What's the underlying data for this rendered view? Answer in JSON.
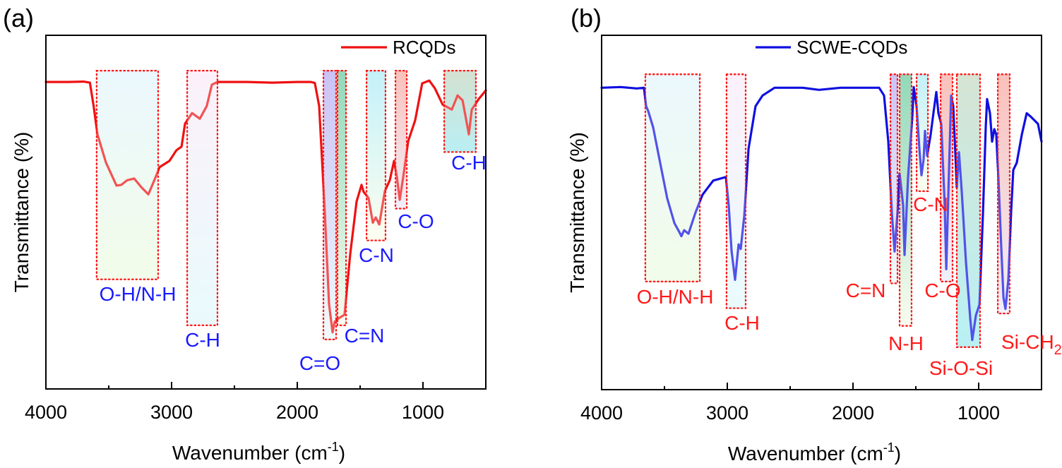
{
  "chart_data": [
    {
      "panel": "(a)",
      "type": "line",
      "title": "",
      "xlabel": "Wavenumber (cm",
      "xlabel_sup": "-1",
      "xlabel_close": ")",
      "ylabel": "Transmittance (%)",
      "xlim": [
        4000,
        500
      ],
      "x_reversed": true,
      "ylim": [
        0,
        100
      ],
      "y_ticks_shown": false,
      "x_ticks": [
        4000,
        3000,
        2000,
        1000
      ],
      "x_tick_labels": [
        "4000",
        "3000",
        "2000",
        "1000"
      ],
      "x_minor_ticks": [
        3500,
        2500,
        1500
      ],
      "grid": false,
      "legend": {
        "placement": "top-right",
        "entries": [
          {
            "name": "RCQDs",
            "color": "#ee1111"
          }
        ]
      },
      "label_color": "#1a1aff",
      "series": [
        {
          "name": "RCQDs",
          "color": "#ee1111",
          "x": [
            4000,
            3820,
            3700,
            3650,
            3620,
            3590,
            3522,
            3438,
            3400,
            3354,
            3298,
            3240,
            3185,
            3129,
            3096,
            3017,
            2961,
            2921,
            2893,
            2837,
            2775,
            2720,
            2680,
            2635,
            2400,
            2200,
            2000,
            1893,
            1860,
            1826,
            1781,
            1747,
            1719,
            1702,
            1669,
            1624,
            1579,
            1528,
            1489,
            1472,
            1433,
            1399,
            1376,
            1348,
            1303,
            1264,
            1230,
            1208,
            1185,
            1157,
            1118,
            1062,
            1006,
            950,
            905,
            843,
            770,
            725,
            685,
            635,
            612,
            556,
            500
          ],
          "y": [
            86.8,
            86.8,
            86.9,
            86.6,
            80,
            72,
            64,
            57.5,
            57.7,
            59,
            59.5,
            57,
            55,
            59.7,
            62.7,
            64.5,
            67.5,
            68.5,
            75,
            78,
            76.4,
            80,
            86,
            86.8,
            86.8,
            86.6,
            86.8,
            86.8,
            86.5,
            80,
            50,
            24,
            16,
            19,
            20,
            21,
            38,
            53,
            57.7,
            55.7,
            54,
            47,
            48.5,
            46.5,
            56,
            59,
            64.5,
            60,
            53.5,
            60,
            70,
            76,
            86.4,
            87.2,
            85,
            80.4,
            79,
            83,
            81.6,
            72,
            79,
            82,
            84.4
          ]
        }
      ],
      "bands": [
        {
          "label": "O-H/N-H",
          "x_range": [
            3596,
            3107
          ],
          "t_range": [
            31,
            90
          ],
          "fill_top": "#dff3fc",
          "fill_bottom": "#eafbdc"
        },
        {
          "label": "C-H",
          "x_range": [
            2876,
            2635
          ],
          "t_range": [
            18,
            90
          ],
          "fill_top": "#fbe8f8",
          "fill_bottom": "#dcf8fb"
        },
        {
          "label": "C=O",
          "x_range": [
            1792,
            1691
          ],
          "t_range": [
            14,
            90
          ],
          "fill_top": "#a99cf0",
          "fill_bottom": "#e7f8f8"
        },
        {
          "label": "C=N",
          "x_range": [
            1680,
            1612
          ],
          "t_range": [
            18,
            90
          ],
          "fill_top": "#4fc08e",
          "fill_bottom": "#f3fbe6"
        },
        {
          "label": "C-N",
          "x_range": [
            1449,
            1298
          ],
          "t_range": [
            42,
            90
          ],
          "fill_top": "#9fe9f6",
          "fill_bottom": "#fdfde6"
        },
        {
          "label": "C-O",
          "x_range": [
            1219,
            1129
          ],
          "t_range": [
            51,
            90
          ],
          "fill_top": "#f79a91",
          "fill_bottom": "#e6e6f8"
        },
        {
          "label": "C-H",
          "x_range": [
            831,
            579
          ],
          "t_range": [
            67,
            90
          ],
          "fill_top": "#b9cfb3",
          "fill_bottom": "#8ee5ec"
        }
      ]
    },
    {
      "panel": "(b)",
      "type": "line",
      "title": "",
      "xlabel": "Wavenumber (cm",
      "xlabel_sup": "-1",
      "xlabel_close": ")",
      "ylabel": "Transmittance (%)",
      "xlim": [
        4000,
        500
      ],
      "x_reversed": true,
      "ylim": [
        0,
        100
      ],
      "y_ticks_shown": false,
      "x_ticks": [
        4000,
        3000,
        2000,
        1000
      ],
      "x_tick_labels": [
        "4000",
        "3000",
        "2000",
        "1000"
      ],
      "x_minor_ticks": [
        3500,
        2500,
        1500
      ],
      "grid": false,
      "legend": {
        "placement": "top-right",
        "entries": [
          {
            "name": "SCWE-CQDs",
            "color": "#1010e0"
          }
        ]
      },
      "label_color": "#ff1a1a",
      "series": [
        {
          "name": "SCWE-CQDs",
          "color": "#1010e0",
          "x": [
            4000,
            3850,
            3720,
            3663,
            3646,
            3629,
            3590,
            3534,
            3478,
            3421,
            3382,
            3365,
            3343,
            3309,
            3253,
            3197,
            3112,
            3011,
            2989,
            2966,
            2938,
            2910,
            2893,
            2865,
            2831,
            2775,
            2719,
            2624,
            2400,
            2270,
            2100,
            1900,
            1792,
            1753,
            1719,
            1691,
            1669,
            1646,
            1629,
            1601,
            1590,
            1562,
            1528,
            1517,
            1494,
            1472,
            1455,
            1438,
            1427,
            1410,
            1382,
            1360,
            1337,
            1320,
            1298,
            1270,
            1258,
            1236,
            1219,
            1202,
            1185,
            1174,
            1157,
            1135,
            1101,
            1067,
            1051,
            1022,
            994,
            966,
            944,
            933,
            910,
            893,
            876,
            860,
            843,
            820,
            803,
            787,
            764,
            742,
            725,
            697,
            657,
            618,
            584,
            528,
            500
          ],
          "y": [
            85.2,
            85.4,
            85.0,
            85.2,
            80,
            78.6,
            74,
            64,
            54,
            47,
            44.5,
            43.3,
            45,
            44,
            50,
            55,
            59,
            60,
            52,
            39,
            31,
            41,
            39.7,
            49,
            68,
            80,
            83,
            85.2,
            85.2,
            84.6,
            85.2,
            85.2,
            85.2,
            83,
            70,
            50,
            39,
            50,
            61,
            52,
            38,
            60,
            77,
            85.4,
            80,
            68,
            60.5,
            65,
            73,
            66,
            72,
            78,
            84,
            78,
            75,
            52,
            34,
            62,
            83,
            80,
            66,
            57,
            67,
            56,
            36,
            20,
            14,
            21,
            24,
            50,
            74,
            82,
            78,
            70,
            73.5,
            72,
            60,
            40,
            26,
            22.8,
            31,
            50,
            62,
            64,
            72,
            78,
            77,
            75,
            70
          ]
        }
      ],
      "bands": [
        {
          "label": "O-H/N-H",
          "x_range": [
            3652,
            3219
          ],
          "t_range": [
            30.5,
            89
          ],
          "fill_top": "#dff3fc",
          "fill_bottom": "#eafbdc"
        },
        {
          "label": "C-H",
          "x_range": [
            3006,
            2854
          ],
          "t_range": [
            23,
            89
          ],
          "fill_top": "#fbe8f8",
          "fill_bottom": "#dcf8fb"
        },
        {
          "label": "C=N",
          "x_range": [
            1702,
            1646
          ],
          "t_range": [
            30,
            89
          ],
          "fill_top": "#a99cf0",
          "fill_bottom": "#e7f8f8"
        },
        {
          "label": "N-H",
          "x_range": [
            1629,
            1534
          ],
          "t_range": [
            18,
            89
          ],
          "fill_top": "#4fc08e",
          "fill_bottom": "#f3fbe6"
        },
        {
          "label": "C-N",
          "x_range": [
            1494,
            1404
          ],
          "t_range": [
            56,
            89
          ],
          "fill_top": "#9fe9f6",
          "fill_bottom": "#fdfde6"
        },
        {
          "label": "C-O",
          "x_range": [
            1303,
            1208
          ],
          "t_range": [
            30.5,
            89
          ],
          "fill_top": "#f79a91",
          "fill_bottom": "#e6e6f8"
        },
        {
          "label": "Si-O-Si",
          "x_range": [
            1174,
            989
          ],
          "t_range": [
            12,
            89
          ],
          "fill_top": "#bcd3b8",
          "fill_bottom": "#8ee8ee"
        },
        {
          "label": "Si-CH",
          "label_sub": "2",
          "x_range": [
            848,
            753
          ],
          "t_range": [
            21.5,
            89
          ],
          "fill_top": "#f79a91",
          "fill_bottom": "#e6e6f8"
        }
      ]
    }
  ]
}
